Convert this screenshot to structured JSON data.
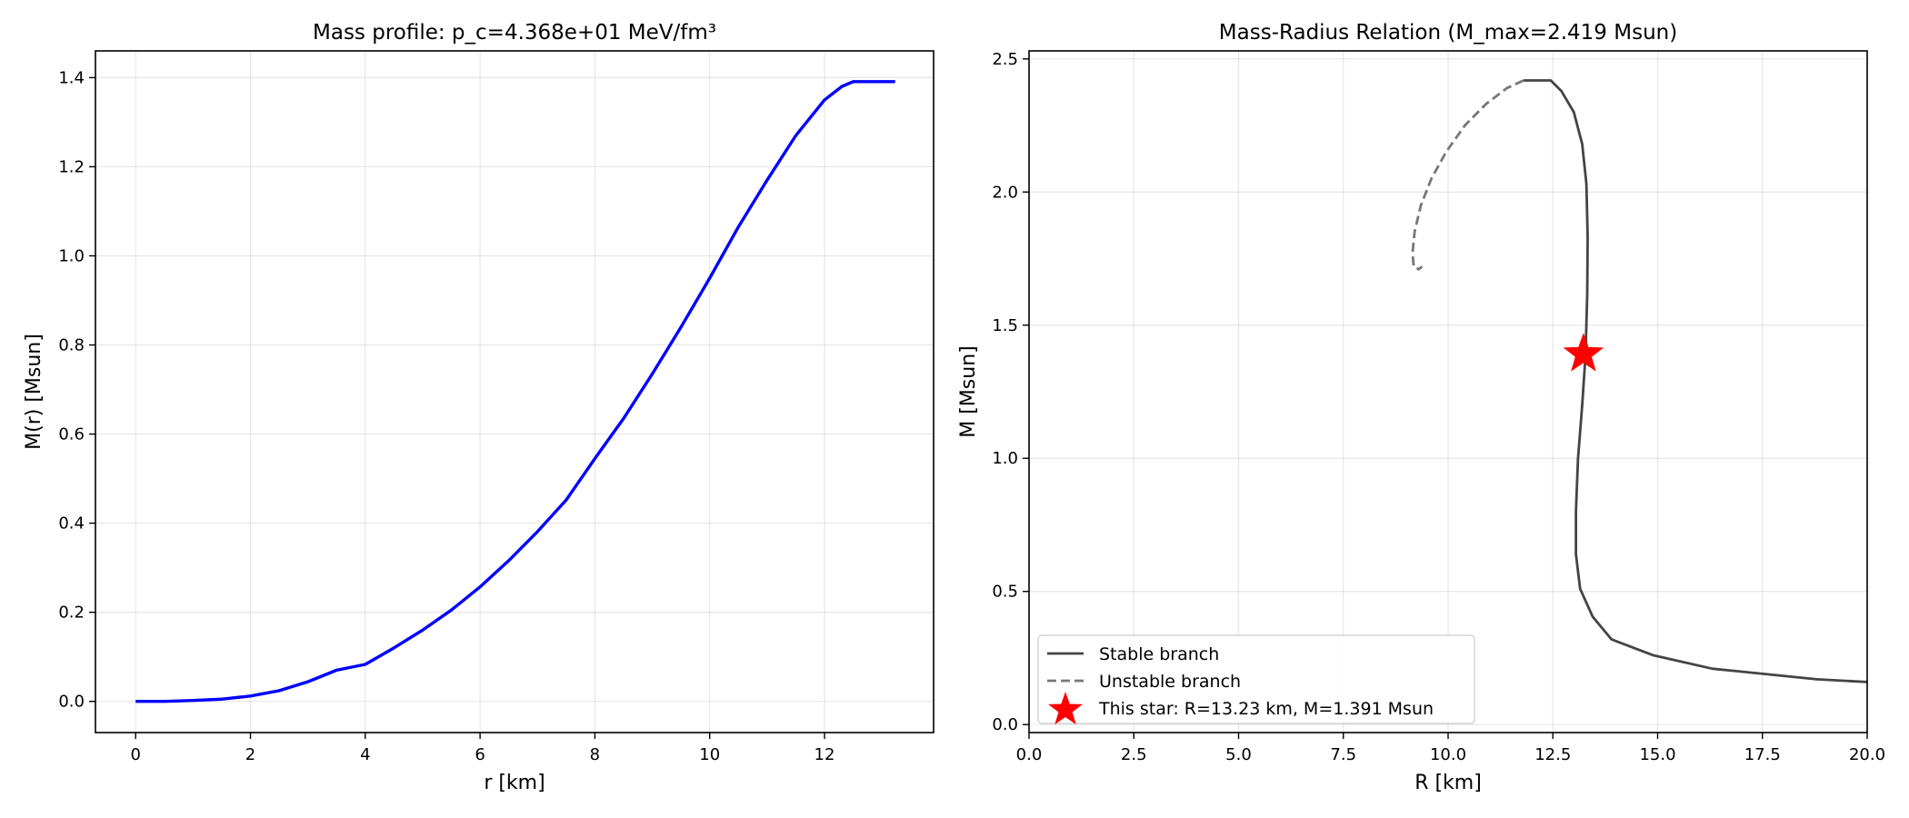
{
  "chart_data": [
    {
      "type": "line",
      "title": "Mass profile: p_c=4.368e+01 MeV/fm³",
      "xlabel": "r [km]",
      "ylabel": "M(r) [Msun]",
      "xlim": [
        -0.7,
        13.9
      ],
      "ylim": [
        -0.07,
        1.46
      ],
      "xticks": [
        0,
        2,
        4,
        6,
        8,
        10,
        12
      ],
      "xtick_labels": [
        "0",
        "2",
        "4",
        "6",
        "8",
        "10",
        "12"
      ],
      "yticks": [
        0.0,
        0.2,
        0.4,
        0.6,
        0.8,
        1.0,
        1.2,
        1.4
      ],
      "ytick_labels": [
        "0.0",
        "0.2",
        "0.4",
        "0.6",
        "0.8",
        "1.0",
        "1.2",
        "1.4"
      ],
      "grid": true,
      "series": [
        {
          "color": "#0000ff",
          "x": [
            0,
            0.5,
            1,
            1.5,
            2,
            2.5,
            3,
            3.5,
            4,
            4.5,
            5,
            5.5,
            6,
            6.5,
            7,
            7.5,
            8,
            8.5,
            9,
            9.5,
            10,
            10.5,
            11,
            11.5,
            12,
            12.3,
            12.5,
            12.7,
            13.23
          ],
          "y": [
            0.0,
            0.0,
            0.002,
            0.005,
            0.012,
            0.024,
            0.044,
            0.07,
            0.083,
            0.12,
            0.16,
            0.205,
            0.257,
            0.316,
            0.381,
            0.452,
            0.545,
            0.635,
            0.735,
            0.84,
            0.95,
            1.065,
            1.17,
            1.27,
            1.35,
            1.38,
            1.391,
            1.391,
            1.391
          ]
        }
      ]
    },
    {
      "type": "line",
      "title": "Mass-Radius Relation (M_max=2.419 Msun)",
      "xlabel": "R [km]",
      "ylabel": "M [Msun]",
      "xlim": [
        0.0,
        20.0
      ],
      "ylim": [
        -0.03,
        2.53
      ],
      "xticks": [
        0.0,
        2.5,
        5.0,
        7.5,
        10.0,
        12.5,
        15.0,
        17.5,
        20.0
      ],
      "xtick_labels": [
        "0.0",
        "2.5",
        "5.0",
        "7.5",
        "10.0",
        "12.5",
        "15.0",
        "17.5",
        "20.0"
      ],
      "yticks": [
        0.0,
        0.5,
        1.0,
        1.5,
        2.0,
        2.5
      ],
      "ytick_labels": [
        "0.0",
        "0.5",
        "1.0",
        "1.5",
        "2.0",
        "2.5"
      ],
      "grid": true,
      "legend_position": "lower-left",
      "series": [
        {
          "name": "Stable branch",
          "color": "#444444",
          "style": "solid",
          "x": [
            20.0,
            18.8,
            16.3,
            14.9,
            13.9,
            13.45,
            13.15,
            13.05,
            13.05,
            13.1,
            13.2,
            13.28,
            13.32,
            13.33,
            13.3,
            13.2,
            13.0,
            12.7,
            12.45,
            12.2,
            11.8
          ],
          "y": [
            0.16,
            0.17,
            0.21,
            0.26,
            0.32,
            0.405,
            0.51,
            0.64,
            0.8,
            1.0,
            1.2,
            1.39,
            1.62,
            1.83,
            2.03,
            2.18,
            2.3,
            2.38,
            2.419,
            2.419,
            2.419
          ]
        },
        {
          "name": "Unstable branch",
          "color": "#777777",
          "style": "dashed",
          "x": [
            11.8,
            11.4,
            10.9,
            10.4,
            9.95,
            9.6,
            9.35,
            9.2,
            9.15,
            9.18,
            9.3,
            9.38
          ],
          "y": [
            2.419,
            2.39,
            2.33,
            2.25,
            2.15,
            2.05,
            1.95,
            1.85,
            1.77,
            1.72,
            1.71,
            1.72
          ]
        }
      ],
      "highlight_point": {
        "name": "This star: R=13.23 km, M=1.391 Msun",
        "color": "#ff0000",
        "marker": "star",
        "x": 13.23,
        "y": 1.391
      }
    }
  ]
}
